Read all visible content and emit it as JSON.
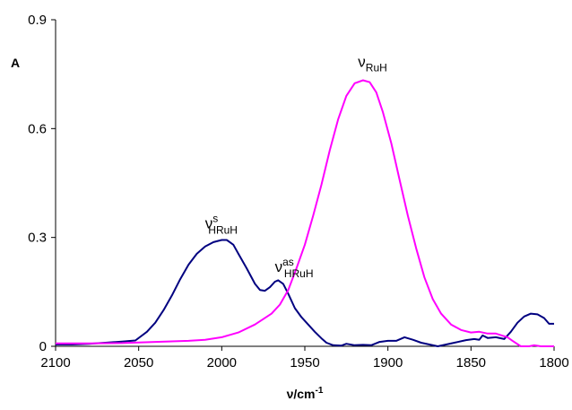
{
  "chart_data": {
    "type": "line",
    "title": "",
    "xlabel": {
      "base": "ν/cm",
      "sup": "-1"
    },
    "ylabel": "A",
    "xlim": [
      2100,
      1800
    ],
    "ylim": [
      0,
      0.9
    ],
    "x_reversed": true,
    "xticks": [
      2100,
      2050,
      2000,
      1950,
      1900,
      1850,
      1800
    ],
    "xtick_labels": [
      "2100",
      "2050",
      "2000",
      "1950",
      "1900",
      "1850",
      "1800"
    ],
    "yticks": [
      0,
      0.3,
      0.6,
      0.9
    ],
    "ytick_labels": [
      "0",
      "0.3",
      "0.6",
      "0.9"
    ],
    "grid": false,
    "legend": "none",
    "series": [
      {
        "color": "#000080",
        "points": [
          [
            2100,
            0.005
          ],
          [
            2090,
            0.005
          ],
          [
            2080,
            0.007
          ],
          [
            2070,
            0.01
          ],
          [
            2060,
            0.013
          ],
          [
            2052,
            0.016
          ],
          [
            2045,
            0.04
          ],
          [
            2040,
            0.065
          ],
          [
            2035,
            0.1
          ],
          [
            2030,
            0.14
          ],
          [
            2025,
            0.185
          ],
          [
            2020,
            0.225
          ],
          [
            2015,
            0.255
          ],
          [
            2010,
            0.275
          ],
          [
            2005,
            0.287
          ],
          [
            2000,
            0.293
          ],
          [
            1997,
            0.293
          ],
          [
            1993,
            0.28
          ],
          [
            1990,
            0.255
          ],
          [
            1985,
            0.215
          ],
          [
            1980,
            0.172
          ],
          [
            1977,
            0.155
          ],
          [
            1974,
            0.153
          ],
          [
            1971,
            0.163
          ],
          [
            1968,
            0.178
          ],
          [
            1966,
            0.182
          ],
          [
            1963,
            0.172
          ],
          [
            1960,
            0.145
          ],
          [
            1956,
            0.105
          ],
          [
            1952,
            0.08
          ],
          [
            1948,
            0.06
          ],
          [
            1944,
            0.04
          ],
          [
            1940,
            0.022
          ],
          [
            1937,
            0.01
          ],
          [
            1933,
            0.003
          ],
          [
            1928,
            0.002
          ],
          [
            1925,
            0.007
          ],
          [
            1920,
            0.003
          ],
          [
            1915,
            0.004
          ],
          [
            1910,
            0.003
          ],
          [
            1905,
            0.012
          ],
          [
            1900,
            0.015
          ],
          [
            1895,
            0.015
          ],
          [
            1890,
            0.025
          ],
          [
            1885,
            0.018
          ],
          [
            1880,
            0.01
          ],
          [
            1870,
            0.0
          ],
          [
            1860,
            0.01
          ],
          [
            1853,
            0.017
          ],
          [
            1848,
            0.02
          ],
          [
            1845,
            0.018
          ],
          [
            1843,
            0.03
          ],
          [
            1840,
            0.023
          ],
          [
            1835,
            0.025
          ],
          [
            1830,
            0.02
          ],
          [
            1826,
            0.04
          ],
          [
            1822,
            0.065
          ],
          [
            1818,
            0.082
          ],
          [
            1814,
            0.09
          ],
          [
            1810,
            0.088
          ],
          [
            1806,
            0.078
          ],
          [
            1803,
            0.062
          ],
          [
            1800,
            0.062
          ]
        ]
      },
      {
        "color": "#ff00ff",
        "points": [
          [
            2100,
            0.008
          ],
          [
            2080,
            0.008
          ],
          [
            2060,
            0.009
          ],
          [
            2040,
            0.012
          ],
          [
            2020,
            0.015
          ],
          [
            2010,
            0.018
          ],
          [
            2000,
            0.025
          ],
          [
            1990,
            0.038
          ],
          [
            1980,
            0.06
          ],
          [
            1970,
            0.09
          ],
          [
            1965,
            0.115
          ],
          [
            1960,
            0.155
          ],
          [
            1955,
            0.215
          ],
          [
            1950,
            0.28
          ],
          [
            1945,
            0.36
          ],
          [
            1940,
            0.445
          ],
          [
            1935,
            0.54
          ],
          [
            1930,
            0.625
          ],
          [
            1925,
            0.69
          ],
          [
            1920,
            0.725
          ],
          [
            1915,
            0.733
          ],
          [
            1911,
            0.728
          ],
          [
            1907,
            0.7
          ],
          [
            1903,
            0.645
          ],
          [
            1898,
            0.56
          ],
          [
            1893,
            0.46
          ],
          [
            1888,
            0.36
          ],
          [
            1883,
            0.27
          ],
          [
            1878,
            0.19
          ],
          [
            1873,
            0.13
          ],
          [
            1868,
            0.09
          ],
          [
            1862,
            0.06
          ],
          [
            1856,
            0.045
          ],
          [
            1850,
            0.038
          ],
          [
            1845,
            0.04
          ],
          [
            1840,
            0.035
          ],
          [
            1835,
            0.035
          ],
          [
            1828,
            0.025
          ],
          [
            1825,
            0.015
          ],
          [
            1820,
            0.0
          ],
          [
            1815,
            0.0
          ],
          [
            1812,
            0.003
          ],
          [
            1808,
            0.0
          ],
          [
            1800,
            0.0
          ]
        ]
      }
    ],
    "annotations": [
      {
        "base": "ν",
        "sup": "s",
        "sub": "HRuH",
        "x": 2010,
        "y": 0.325
      },
      {
        "base": "ν",
        "sup": "as",
        "sub": "HRuH",
        "x": 1968,
        "y": 0.205
      },
      {
        "base": "ν",
        "sup": "",
        "sub": "RuH",
        "x": 1918,
        "y": 0.77
      }
    ]
  }
}
